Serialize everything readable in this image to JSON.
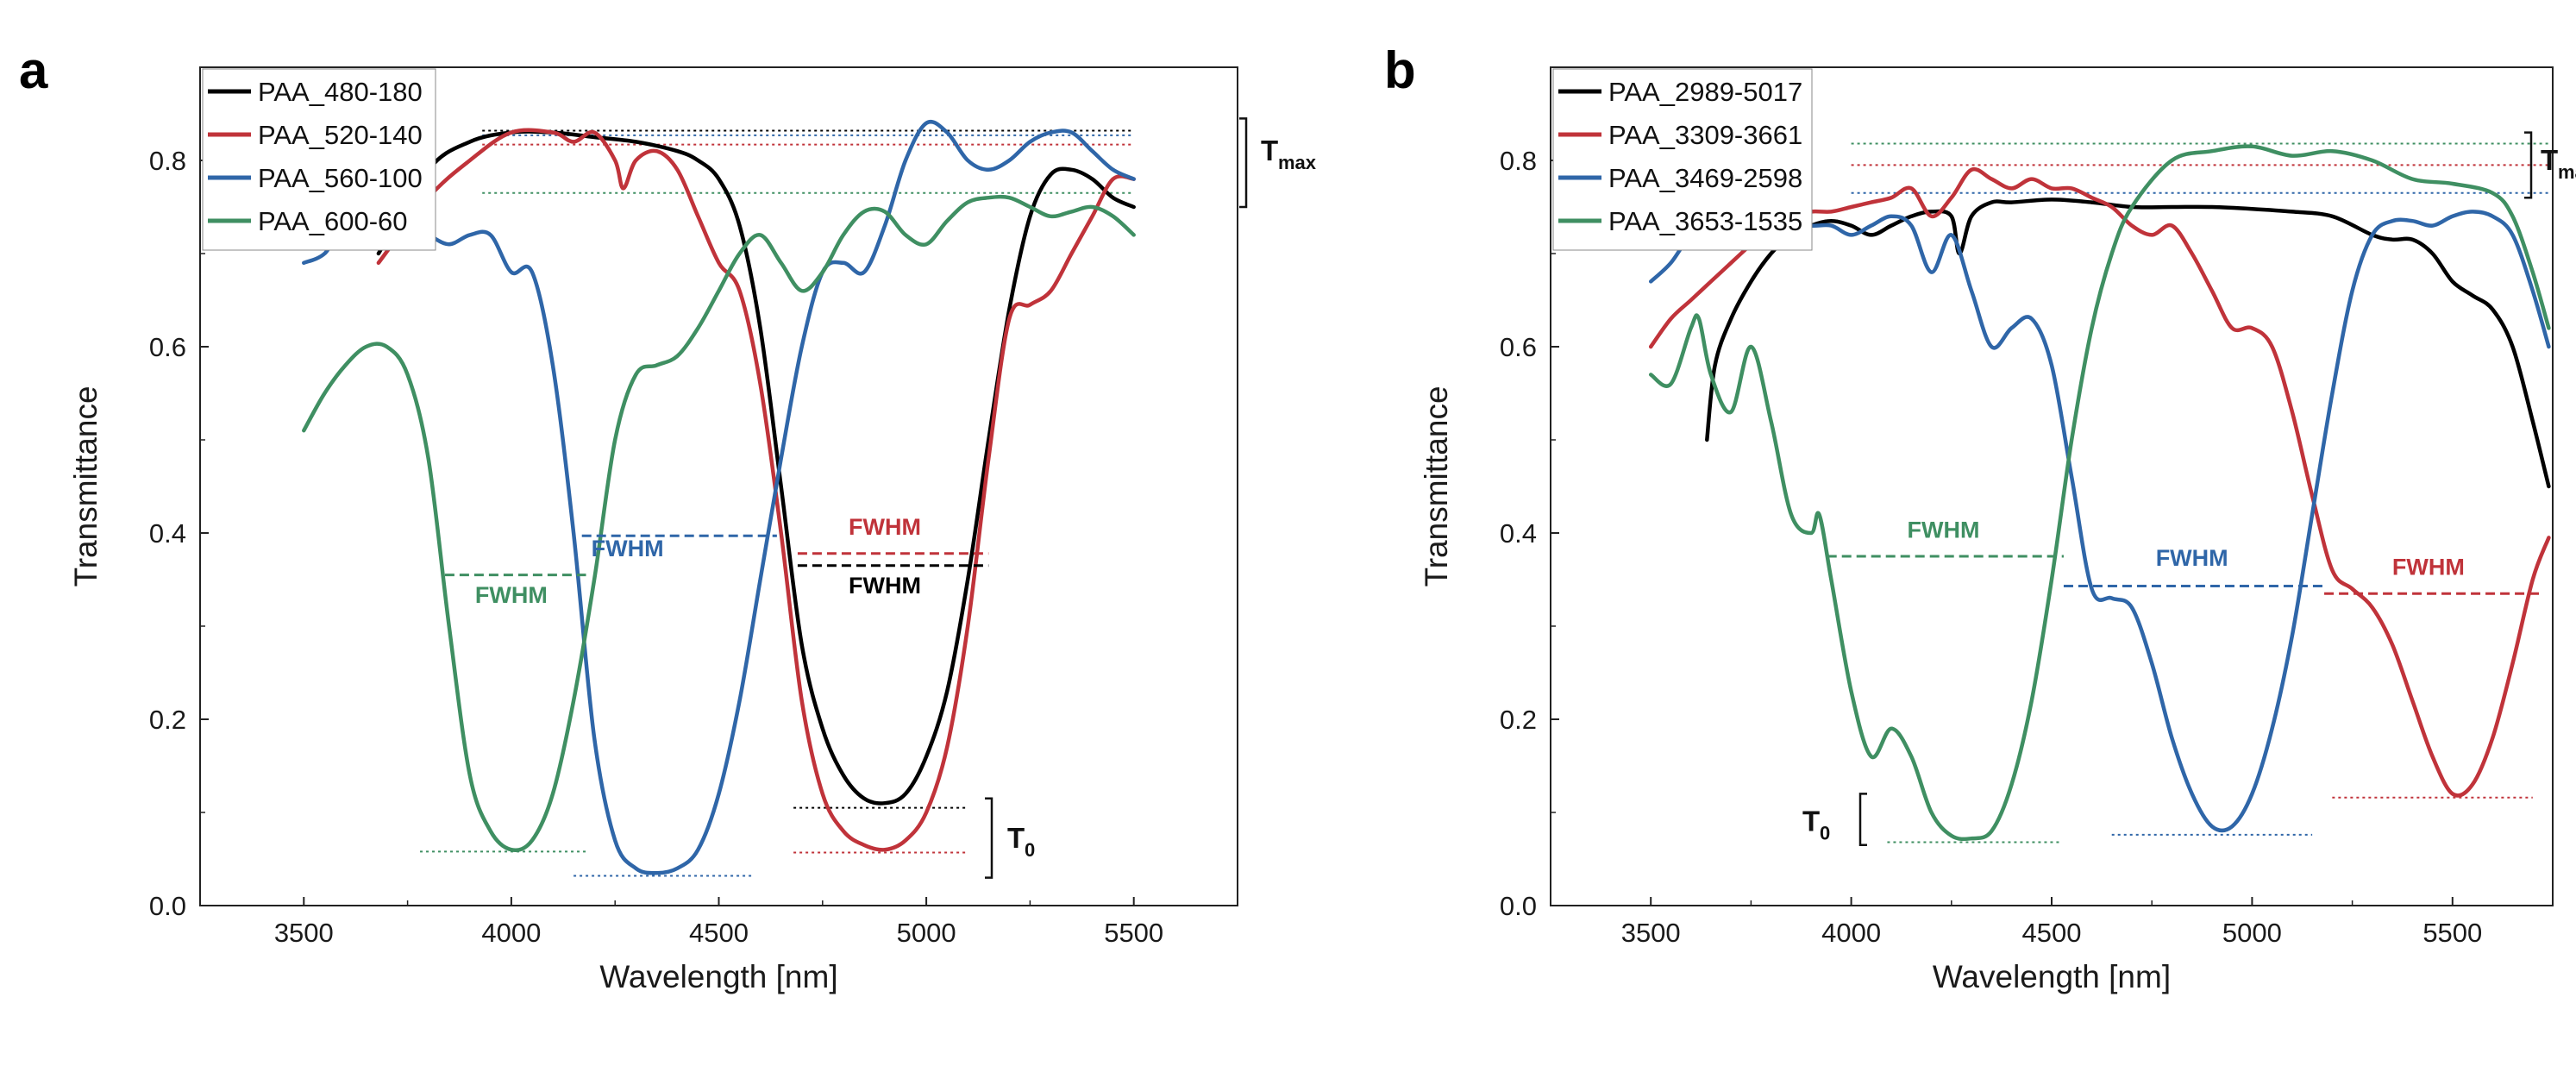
{
  "chart_data": [
    {
      "panel": "a",
      "type": "line",
      "xlabel": "Wavelength [nm]",
      "ylabel": "Transmittance",
      "xlim": [
        3250,
        5750
      ],
      "ylim": [
        0,
        0.9
      ],
      "xticks": [
        3500,
        4000,
        4500,
        5000,
        5500
      ],
      "yticks": [
        0.0,
        0.2,
        0.4,
        0.6,
        0.8
      ],
      "legend_position": "top-left",
      "series": [
        {
          "name": "PAA_480-180",
          "color": "#000000",
          "x": [
            3680,
            3800,
            3900,
            4000,
            4100,
            4200,
            4300,
            4400,
            4450,
            4500,
            4550,
            4600,
            4650,
            4700,
            4750,
            4800,
            4850,
            4900,
            4950,
            5000,
            5050,
            5100,
            5150,
            5200,
            5250,
            5300,
            5350,
            5400,
            5450,
            5500
          ],
          "y": [
            0.7,
            0.79,
            0.82,
            0.83,
            0.83,
            0.825,
            0.82,
            0.81,
            0.8,
            0.78,
            0.73,
            0.62,
            0.45,
            0.28,
            0.19,
            0.14,
            0.115,
            0.11,
            0.12,
            0.16,
            0.23,
            0.35,
            0.5,
            0.64,
            0.74,
            0.785,
            0.79,
            0.78,
            0.76,
            0.75
          ]
        },
        {
          "name": "PAA_520-140",
          "color": "#c0333a",
          "x": [
            3680,
            3800,
            3900,
            4000,
            4100,
            4150,
            4200,
            4250,
            4270,
            4300,
            4350,
            4400,
            4450,
            4500,
            4550,
            4600,
            4650,
            4700,
            4750,
            4800,
            4850,
            4900,
            4950,
            5000,
            5050,
            5100,
            5150,
            5200,
            5250,
            5300,
            5350,
            5400,
            5450,
            5500
          ],
          "y": [
            0.69,
            0.76,
            0.8,
            0.83,
            0.83,
            0.82,
            0.83,
            0.8,
            0.77,
            0.8,
            0.81,
            0.79,
            0.74,
            0.69,
            0.66,
            0.56,
            0.4,
            0.22,
            0.12,
            0.08,
            0.065,
            0.06,
            0.07,
            0.1,
            0.17,
            0.3,
            0.48,
            0.63,
            0.645,
            0.66,
            0.7,
            0.74,
            0.78,
            0.78
          ]
        },
        {
          "name": "PAA_560-100",
          "color": "#2f66a8",
          "x": [
            3500,
            3550,
            3600,
            3650,
            3700,
            3750,
            3800,
            3850,
            3900,
            3950,
            4000,
            4050,
            4100,
            4150,
            4200,
            4250,
            4300,
            4350,
            4400,
            4450,
            4500,
            4550,
            4600,
            4650,
            4700,
            4750,
            4800,
            4850,
            4900,
            4950,
            5000,
            5050,
            5100,
            5150,
            5200,
            5250,
            5300,
            5350,
            5400,
            5450,
            5500
          ],
          "y": [
            0.69,
            0.7,
            0.73,
            0.72,
            0.72,
            0.73,
            0.72,
            0.71,
            0.72,
            0.72,
            0.68,
            0.68,
            0.58,
            0.4,
            0.18,
            0.07,
            0.04,
            0.035,
            0.04,
            0.06,
            0.12,
            0.22,
            0.35,
            0.48,
            0.6,
            0.68,
            0.69,
            0.68,
            0.73,
            0.8,
            0.84,
            0.83,
            0.8,
            0.79,
            0.8,
            0.82,
            0.83,
            0.83,
            0.81,
            0.79,
            0.78
          ]
        },
        {
          "name": "PAA_600-60",
          "color": "#3f8f62",
          "x": [
            3500,
            3550,
            3600,
            3650,
            3700,
            3750,
            3800,
            3850,
            3900,
            3950,
            4000,
            4050,
            4100,
            4150,
            4200,
            4250,
            4300,
            4350,
            4400,
            4450,
            4500,
            4550,
            4600,
            4650,
            4700,
            4750,
            4800,
            4850,
            4900,
            4950,
            5000,
            5050,
            5100,
            5150,
            5200,
            5250,
            5300,
            5350,
            5400,
            5450,
            5500
          ],
          "y": [
            0.51,
            0.55,
            0.58,
            0.6,
            0.6,
            0.57,
            0.48,
            0.3,
            0.14,
            0.08,
            0.06,
            0.07,
            0.12,
            0.22,
            0.35,
            0.5,
            0.57,
            0.58,
            0.59,
            0.62,
            0.66,
            0.7,
            0.72,
            0.69,
            0.66,
            0.68,
            0.72,
            0.745,
            0.745,
            0.72,
            0.71,
            0.735,
            0.755,
            0.76,
            0.76,
            0.75,
            0.74,
            0.745,
            0.75,
            0.74,
            0.72
          ]
        }
      ],
      "fwhm_markers": [
        {
          "label": "FWHM",
          "color": "#3f8f62",
          "x": [
            3840,
            4180
          ],
          "y": 0.355
        },
        {
          "label": "FWHM",
          "color": "#2f66a8",
          "x": [
            4170,
            4640
          ],
          "y": 0.397
        },
        {
          "label": "FWHM",
          "color": "#c0333a",
          "x": [
            4690,
            5150
          ],
          "y": 0.378
        },
        {
          "label": "FWHM",
          "color": "#000000",
          "x": [
            4690,
            5150
          ],
          "y": 0.365
        }
      ],
      "t0_lines": [
        {
          "color": "#3f8f62",
          "x": [
            3780,
            4180
          ],
          "y": 0.058
        },
        {
          "color": "#2f66a8",
          "x": [
            4150,
            4580
          ],
          "y": 0.032
        },
        {
          "color": "#c0333a",
          "x": [
            4680,
            5100
          ],
          "y": 0.057
        },
        {
          "color": "#000000",
          "x": [
            4680,
            5100
          ],
          "y": 0.105
        }
      ],
      "tmax_lines": [
        {
          "color": "#000000",
          "x": [
            3930,
            5500
          ],
          "y": 0.832
        },
        {
          "color": "#2f66a8",
          "x": [
            3930,
            5500
          ],
          "y": 0.827
        },
        {
          "color": "#c0333a",
          "x": [
            3930,
            5500
          ],
          "y": 0.817
        },
        {
          "color": "#3f8f62",
          "x": [
            3930,
            5500
          ],
          "y": 0.765
        }
      ],
      "annotations": {
        "tmax": "T",
        "tmax_sub": "max",
        "t0": "T",
        "t0_sub": "0"
      }
    },
    {
      "panel": "b",
      "type": "line",
      "xlabel": "Wavelength [nm]",
      "ylabel": "Transmittance",
      "xlim": [
        3250,
        5750
      ],
      "ylim": [
        0,
        0.9
      ],
      "xticks": [
        3500,
        4000,
        4500,
        5000,
        5500
      ],
      "yticks": [
        0.0,
        0.2,
        0.4,
        0.6,
        0.8
      ],
      "legend_position": "top-left",
      "series": [
        {
          "name": "PAA_2989-5017",
          "color": "#000000",
          "x": [
            3640,
            3660,
            3700,
            3750,
            3800,
            3850,
            3900,
            3950,
            4000,
            4050,
            4100,
            4150,
            4200,
            4250,
            4270,
            4300,
            4350,
            4400,
            4500,
            4600,
            4700,
            4800,
            4900,
            5000,
            5100,
            5200,
            5300,
            5350,
            5400,
            5450,
            5500,
            5550,
            5600,
            5650,
            5700,
            5740
          ],
          "y": [
            0.5,
            0.58,
            0.63,
            0.67,
            0.7,
            0.72,
            0.73,
            0.735,
            0.73,
            0.72,
            0.73,
            0.74,
            0.745,
            0.74,
            0.7,
            0.74,
            0.755,
            0.755,
            0.758,
            0.755,
            0.75,
            0.75,
            0.75,
            0.748,
            0.745,
            0.74,
            0.72,
            0.715,
            0.715,
            0.7,
            0.67,
            0.655,
            0.64,
            0.6,
            0.52,
            0.45
          ]
        },
        {
          "name": "PAA_3309-3661",
          "color": "#c0333a",
          "x": [
            3500,
            3550,
            3600,
            3650,
            3700,
            3750,
            3800,
            3850,
            3900,
            3950,
            4000,
            4050,
            4100,
            4150,
            4200,
            4250,
            4300,
            4350,
            4400,
            4450,
            4500,
            4550,
            4600,
            4650,
            4700,
            4750,
            4800,
            4850,
            4900,
            4950,
            5000,
            5050,
            5100,
            5150,
            5200,
            5250,
            5300,
            5350,
            5400,
            5450,
            5500,
            5550,
            5600,
            5650,
            5700,
            5740
          ],
          "y": [
            0.6,
            0.63,
            0.65,
            0.67,
            0.69,
            0.71,
            0.73,
            0.74,
            0.745,
            0.745,
            0.75,
            0.755,
            0.76,
            0.77,
            0.74,
            0.76,
            0.79,
            0.78,
            0.77,
            0.78,
            0.77,
            0.77,
            0.76,
            0.75,
            0.73,
            0.72,
            0.73,
            0.7,
            0.66,
            0.62,
            0.62,
            0.6,
            0.53,
            0.44,
            0.36,
            0.34,
            0.32,
            0.28,
            0.22,
            0.16,
            0.12,
            0.13,
            0.18,
            0.26,
            0.35,
            0.395
          ]
        },
        {
          "name": "PAA_3469-2598",
          "color": "#2f66a8",
          "x": [
            3500,
            3550,
            3600,
            3650,
            3700,
            3750,
            3800,
            3850,
            3900,
            3950,
            4000,
            4050,
            4100,
            4150,
            4200,
            4250,
            4300,
            4350,
            4400,
            4450,
            4500,
            4550,
            4600,
            4650,
            4700,
            4750,
            4800,
            4850,
            4900,
            4950,
            5000,
            5050,
            5100,
            5150,
            5200,
            5250,
            5300,
            5350,
            5400,
            5450,
            5500,
            5550,
            5600,
            5650,
            5700,
            5740
          ],
          "y": [
            0.67,
            0.69,
            0.72,
            0.73,
            0.74,
            0.74,
            0.74,
            0.735,
            0.73,
            0.73,
            0.72,
            0.73,
            0.74,
            0.73,
            0.68,
            0.72,
            0.66,
            0.6,
            0.62,
            0.63,
            0.58,
            0.46,
            0.34,
            0.33,
            0.32,
            0.26,
            0.18,
            0.12,
            0.085,
            0.085,
            0.12,
            0.19,
            0.29,
            0.42,
            0.55,
            0.66,
            0.72,
            0.735,
            0.735,
            0.73,
            0.74,
            0.745,
            0.74,
            0.72,
            0.66,
            0.6
          ]
        },
        {
          "name": "PAA_3653-1535",
          "color": "#3f8f62",
          "x": [
            3500,
            3550,
            3600,
            3620,
            3650,
            3700,
            3750,
            3800,
            3850,
            3900,
            3920,
            3950,
            4000,
            4050,
            4100,
            4150,
            4200,
            4250,
            4300,
            4350,
            4400,
            4450,
            4500,
            4550,
            4600,
            4650,
            4700,
            4800,
            4900,
            5000,
            5100,
            5200,
            5300,
            5400,
            5500,
            5600,
            5650,
            5700,
            5740
          ],
          "y": [
            0.57,
            0.56,
            0.62,
            0.63,
            0.57,
            0.53,
            0.6,
            0.52,
            0.42,
            0.4,
            0.42,
            0.35,
            0.23,
            0.16,
            0.19,
            0.16,
            0.1,
            0.075,
            0.072,
            0.08,
            0.13,
            0.22,
            0.35,
            0.5,
            0.62,
            0.7,
            0.75,
            0.8,
            0.81,
            0.815,
            0.805,
            0.81,
            0.8,
            0.78,
            0.775,
            0.765,
            0.74,
            0.68,
            0.62
          ]
        }
      ],
      "fwhm_markers": [
        {
          "label": "FWHM",
          "color": "#3f8f62",
          "x": [
            3940,
            4530
          ],
          "y": 0.375
        },
        {
          "label": "FWHM",
          "color": "#2f66a8",
          "x": [
            4530,
            5180
          ],
          "y": 0.343
        },
        {
          "label": "FWHM",
          "color": "#c0333a",
          "x": [
            5180,
            5720
          ],
          "y": 0.335
        }
      ],
      "t0_lines": [
        {
          "color": "#3f8f62",
          "x": [
            4090,
            4520
          ],
          "y": 0.068
        },
        {
          "color": "#2f66a8",
          "x": [
            4650,
            5150
          ],
          "y": 0.076
        },
        {
          "color": "#c0333a",
          "x": [
            5200,
            5700
          ],
          "y": 0.116
        }
      ],
      "tmax_lines": [
        {
          "color": "#3f8f62",
          "x": [
            4000,
            5740
          ],
          "y": 0.818
        },
        {
          "color": "#c0333a",
          "x": [
            4000,
            5740
          ],
          "y": 0.795
        },
        {
          "color": "#2f66a8",
          "x": [
            4000,
            5740
          ],
          "y": 0.765
        }
      ],
      "annotations": {
        "tmax": "T",
        "tmax_sub": "max",
        "t0": "T",
        "t0_sub": "0"
      }
    }
  ]
}
